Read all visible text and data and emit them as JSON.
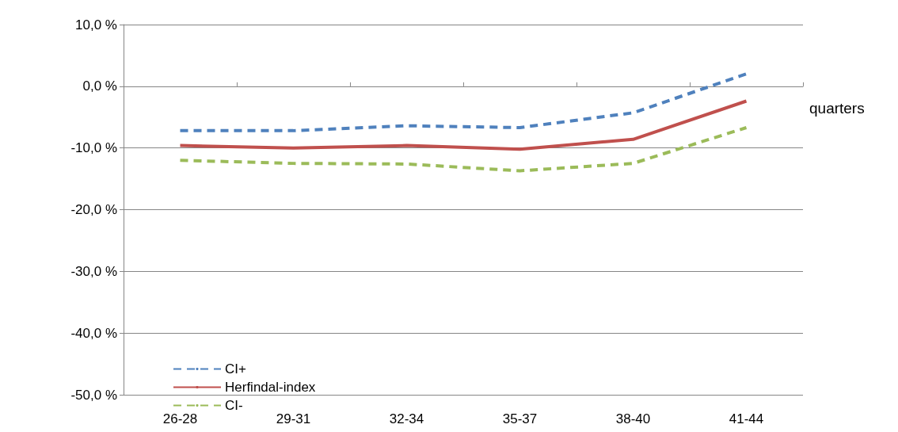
{
  "chart_data": {
    "type": "line",
    "xlabel": "quarters",
    "categories": [
      "26-28",
      "29-31",
      "32-34",
      "35-37",
      "38-40",
      "41-44"
    ],
    "series": [
      {
        "name": "CI+",
        "color": "#4f81bd",
        "line_style": "dashed",
        "values": [
          -7.2,
          -7.2,
          -6.4,
          -6.7,
          -4.3,
          2.0
        ]
      },
      {
        "name": "Herfindal-index",
        "color": "#c0504d",
        "line_style": "solid",
        "values": [
          -9.6,
          -10.0,
          -9.6,
          -10.2,
          -8.6,
          -2.4
        ]
      },
      {
        "name": "CI-",
        "color": "#9bbb59",
        "line_style": "dashed",
        "values": [
          -12.0,
          -12.5,
          -12.6,
          -13.7,
          -12.5,
          -6.7
        ]
      }
    ],
    "ylim": [
      -50,
      10
    ],
    "yticks": [
      {
        "value": -50,
        "label": "-50,0 %"
      },
      {
        "value": -40,
        "label": "-40,0 %"
      },
      {
        "value": -30,
        "label": "-30,0 %"
      },
      {
        "value": -20,
        "label": "-20,0 %"
      },
      {
        "value": -10,
        "label": "-10,0 %"
      },
      {
        "value": 0,
        "label": "0,0 %"
      },
      {
        "value": 10,
        "label": "10,0 %"
      }
    ],
    "grid": "y",
    "legend": "bottom left",
    "marker": "none"
  }
}
